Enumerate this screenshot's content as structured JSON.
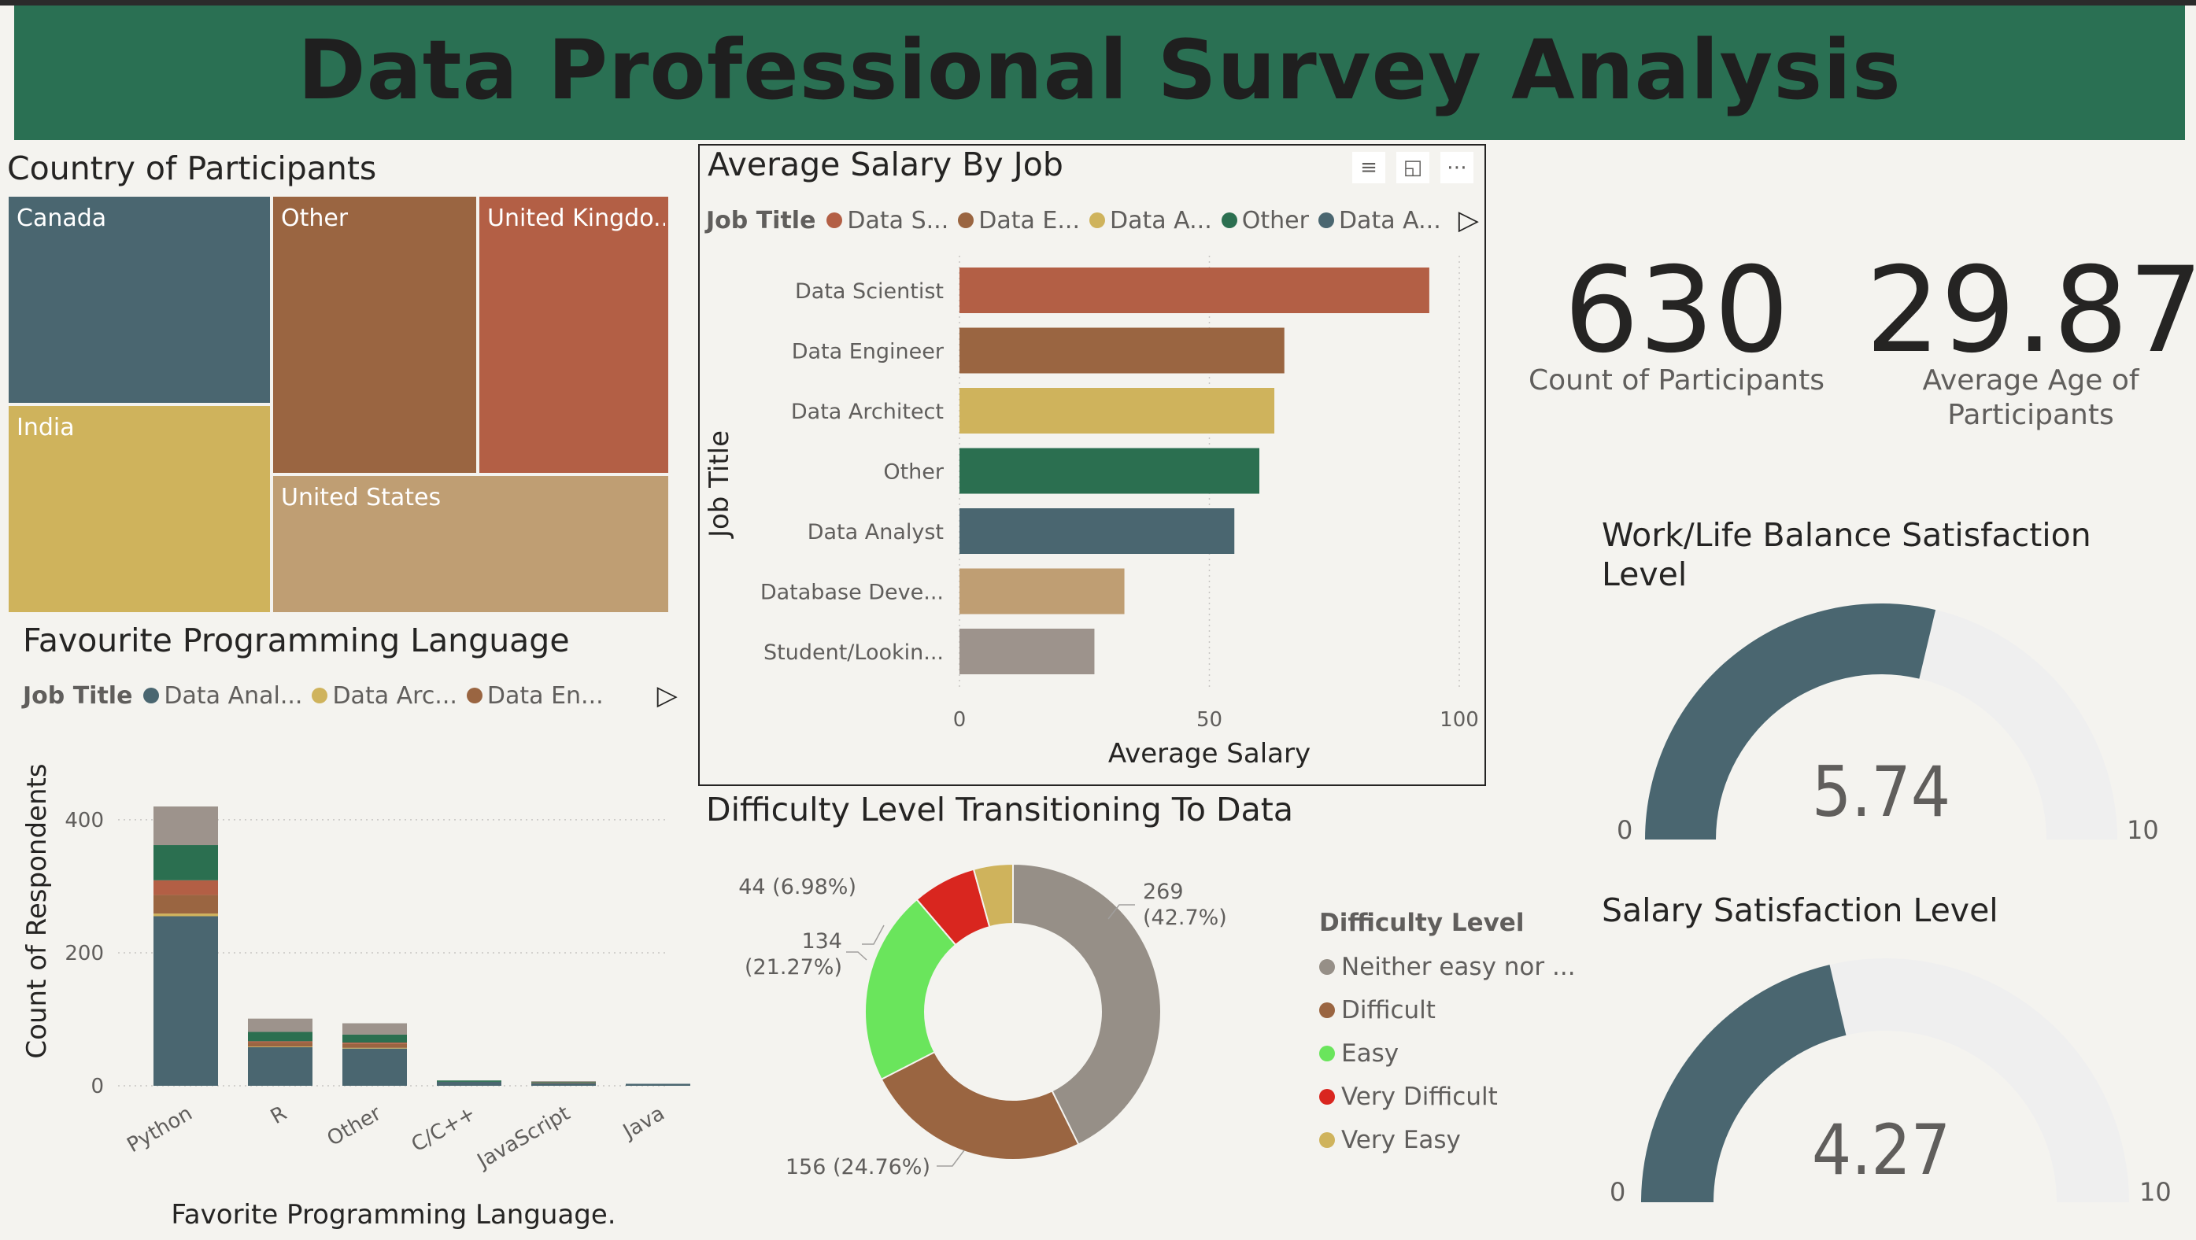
{
  "header": {
    "title": "Data Professional Survey Analysis"
  },
  "colors": {
    "header_bg": "#2a7053",
    "slate": "#4a6670",
    "brown": "#9a6541",
    "orange_red": "#b35f45",
    "gold": "#cfb35c",
    "tan": "#bf9e73",
    "green": "#2b6f50",
    "taupe": "#9d938c",
    "gauge_track": "#efefef",
    "donut_grey": "#968f87",
    "donut_green": "#6ae55c",
    "donut_red": "#d9261f"
  },
  "treemap": {
    "title": "Country of Participants",
    "tiles": [
      {
        "label": "Canada",
        "color": "#4a6670"
      },
      {
        "label": "Other",
        "color": "#9a6541"
      },
      {
        "label": "United Kingdo...",
        "color": "#b35f45"
      },
      {
        "label": "India",
        "color": "#cfb35c"
      },
      {
        "label": "United States",
        "color": "#bf9e73"
      }
    ]
  },
  "salary_by_job": {
    "title": "Average Salary By Job",
    "icons": [
      "filter-icon",
      "focus-mode-icon",
      "more-options-icon"
    ],
    "legend": {
      "title": "Job Title",
      "items": [
        {
          "label": "Data S...",
          "color": "#b35f45"
        },
        {
          "label": "Data E...",
          "color": "#9a6541"
        },
        {
          "label": "Data A...",
          "color": "#cfb35c"
        },
        {
          "label": "Other",
          "color": "#2b6f50"
        },
        {
          "label": "Data A...",
          "color": "#4a6670"
        }
      ]
    }
  },
  "programming": {
    "title": "Favourite Programming Language",
    "legend": {
      "title": "Job Title",
      "items": [
        {
          "label": "Data Anal...",
          "color": "#4a6670"
        },
        {
          "label": "Data Arc...",
          "color": "#cfb35c"
        },
        {
          "label": "Data En...",
          "color": "#9a6541"
        }
      ]
    }
  },
  "difficulty": {
    "title": "Difficulty Level Transitioning To Data",
    "legend_title": "Difficulty Level",
    "items": [
      {
        "label": "Neither easy nor ...",
        "color": "#968f87"
      },
      {
        "label": "Difficult",
        "color": "#9a6541"
      },
      {
        "label": "Easy",
        "color": "#6ae55c"
      },
      {
        "label": "Very Difficult",
        "color": "#d9261f"
      },
      {
        "label": "Very Easy",
        "color": "#cfb35c"
      }
    ]
  },
  "kpis": {
    "count": {
      "value": "630",
      "label": "Count of Participants"
    },
    "age": {
      "value": "29.87",
      "label": "Average Age of Participants"
    }
  },
  "gauges": {
    "work_life": {
      "title": "Work/Life Balance Satisfaction Level",
      "value": 5.74,
      "display": "5.74",
      "min": 0,
      "max": 10,
      "min_label": "0",
      "max_label": "10"
    },
    "salary": {
      "title": "Salary Satisfaction Level",
      "value": 4.27,
      "display": "4.27",
      "min": 0,
      "max": 10,
      "min_label": "0",
      "max_label": "10"
    }
  },
  "chart_data": [
    {
      "type": "treemap",
      "title": "Country of Participants",
      "categories": [
        "Canada",
        "Other",
        "United Kingdo...",
        "India",
        "United States"
      ]
    },
    {
      "type": "bar",
      "orientation": "horizontal",
      "title": "Average Salary By Job",
      "categories": [
        "Data Scientist",
        "Data Engineer",
        "Data Architect",
        "Other",
        "Data Analyst",
        "Database Deve...",
        "Student/Lookin..."
      ],
      "values": [
        94,
        65,
        63,
        60,
        55,
        33,
        27
      ],
      "colors": [
        "#b35f45",
        "#9a6541",
        "#cfb35c",
        "#2b6f50",
        "#4a6670",
        "#bf9e73",
        "#9d938c"
      ],
      "xlabel": "Average Salary",
      "ylabel": "Job Title",
      "xlim": [
        0,
        100
      ],
      "xticks": [
        "0",
        "50",
        "100"
      ],
      "grid": true
    },
    {
      "type": "bar",
      "stacked": true,
      "title": "Favourite Programming Language",
      "categories": [
        "Python",
        "R",
        "Other",
        "C/C++",
        "JavaScript",
        "Java"
      ],
      "series": [
        {
          "name": "Data Anal...",
          "color": "#4a6670",
          "values": [
            255,
            58,
            56,
            6,
            4,
            3
          ]
        },
        {
          "name": "Data Arc...",
          "color": "#cfb35c",
          "values": [
            4,
            1,
            1,
            0,
            0,
            0
          ]
        },
        {
          "name": "Data En...",
          "color": "#9a6541",
          "values": [
            28,
            6,
            6,
            0,
            1,
            0
          ]
        },
        {
          "color": "#b35f45",
          "values": [
            22,
            2,
            2,
            0,
            0,
            0
          ]
        },
        {
          "color": "#2b6f50",
          "values": [
            53,
            14,
            12,
            2,
            1,
            0
          ]
        },
        {
          "color": "#9d938c",
          "values": [
            58,
            20,
            17,
            0,
            1,
            0
          ]
        }
      ],
      "xlabel": "Favorite Programming Language.",
      "ylabel": "Count of Respondents",
      "ylim": [
        0,
        420
      ],
      "yticks": [
        "0",
        "200",
        "400"
      ],
      "grid": true
    },
    {
      "type": "pie",
      "donut": true,
      "title": "Difficulty Level Transitioning To Data",
      "categories": [
        "Neither easy nor ...",
        "Difficult",
        "Easy",
        "Very Difficult",
        "Very Easy"
      ],
      "values": [
        269,
        156,
        134,
        44,
        27
      ],
      "colors": [
        "#968f87",
        "#9a6541",
        "#6ae55c",
        "#d9261f",
        "#cfb35c"
      ],
      "data_labels": [
        "269 (42.7%)",
        "156 (24.76%)",
        "134 (21.27%)",
        "44 (6.98%)",
        ""
      ]
    }
  ]
}
